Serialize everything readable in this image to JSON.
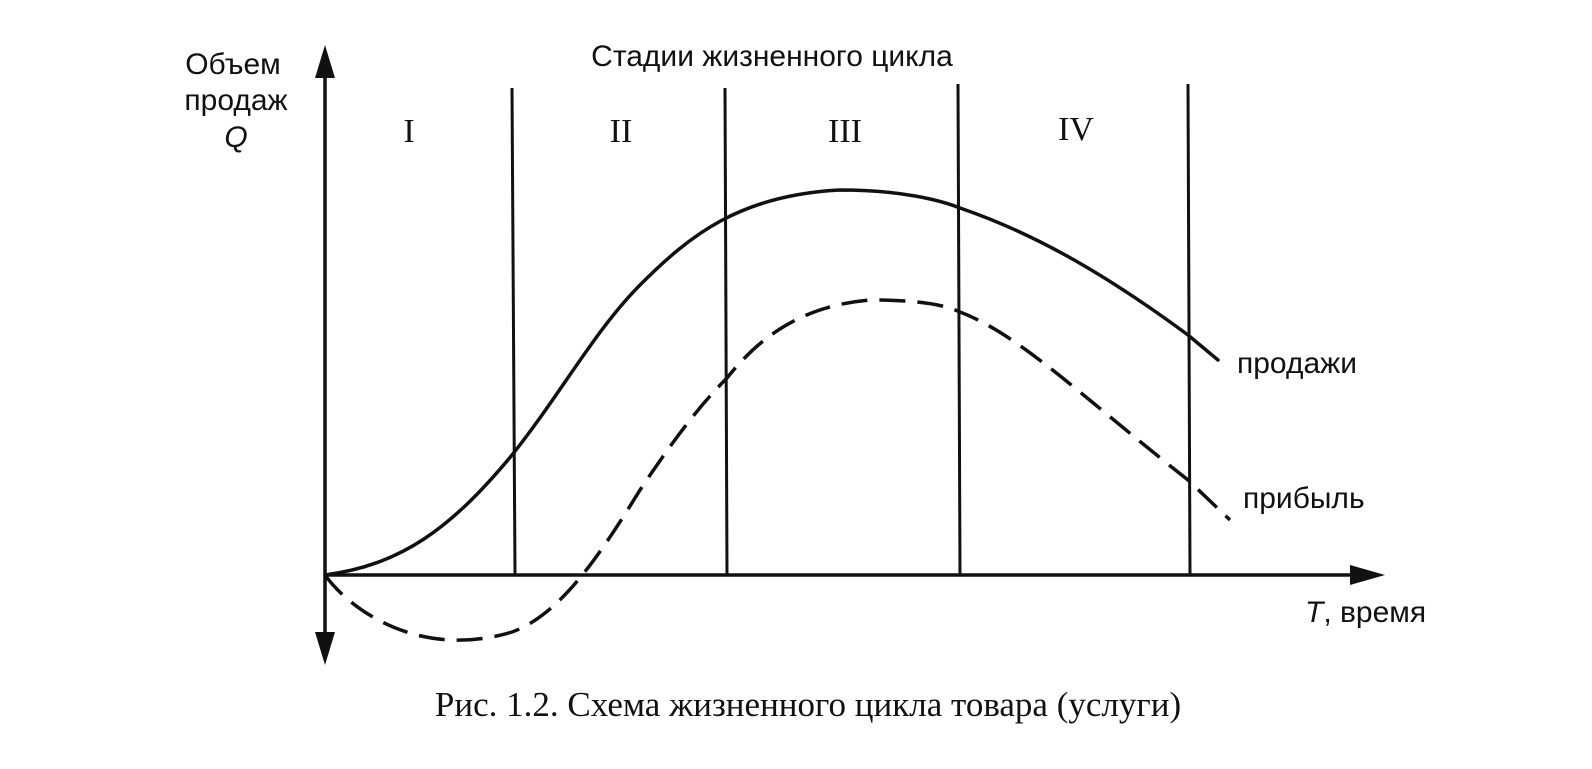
{
  "diagram": {
    "y_axis_label": [
      "Объем",
      "продаж",
      "Q"
    ],
    "x_axis_label_var": "T",
    "x_axis_label_rest": ", время",
    "header": "Стадии жизненного цикла",
    "stages": [
      "I",
      "II",
      "III",
      "IV"
    ],
    "curves": {
      "sales_label": "продажи",
      "profit_label": "прибыль"
    },
    "caption": "Рис. 1.2. Схема жизненного цикла товара (услуги)"
  }
}
